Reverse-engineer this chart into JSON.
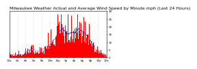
{
  "title": "Milwaukee Weather Actual and Average Wind Speed by Minute mph (Last 24 Hours)",
  "ylim": [
    0,
    30
  ],
  "n_points": 1440,
  "background_color": "#ffffff",
  "bar_color": "#ff0000",
  "line_color": "#0000ff",
  "grid_color": "#aaaaaa",
  "title_fontsize": 4.5,
  "tick_fontsize": 3.0
}
